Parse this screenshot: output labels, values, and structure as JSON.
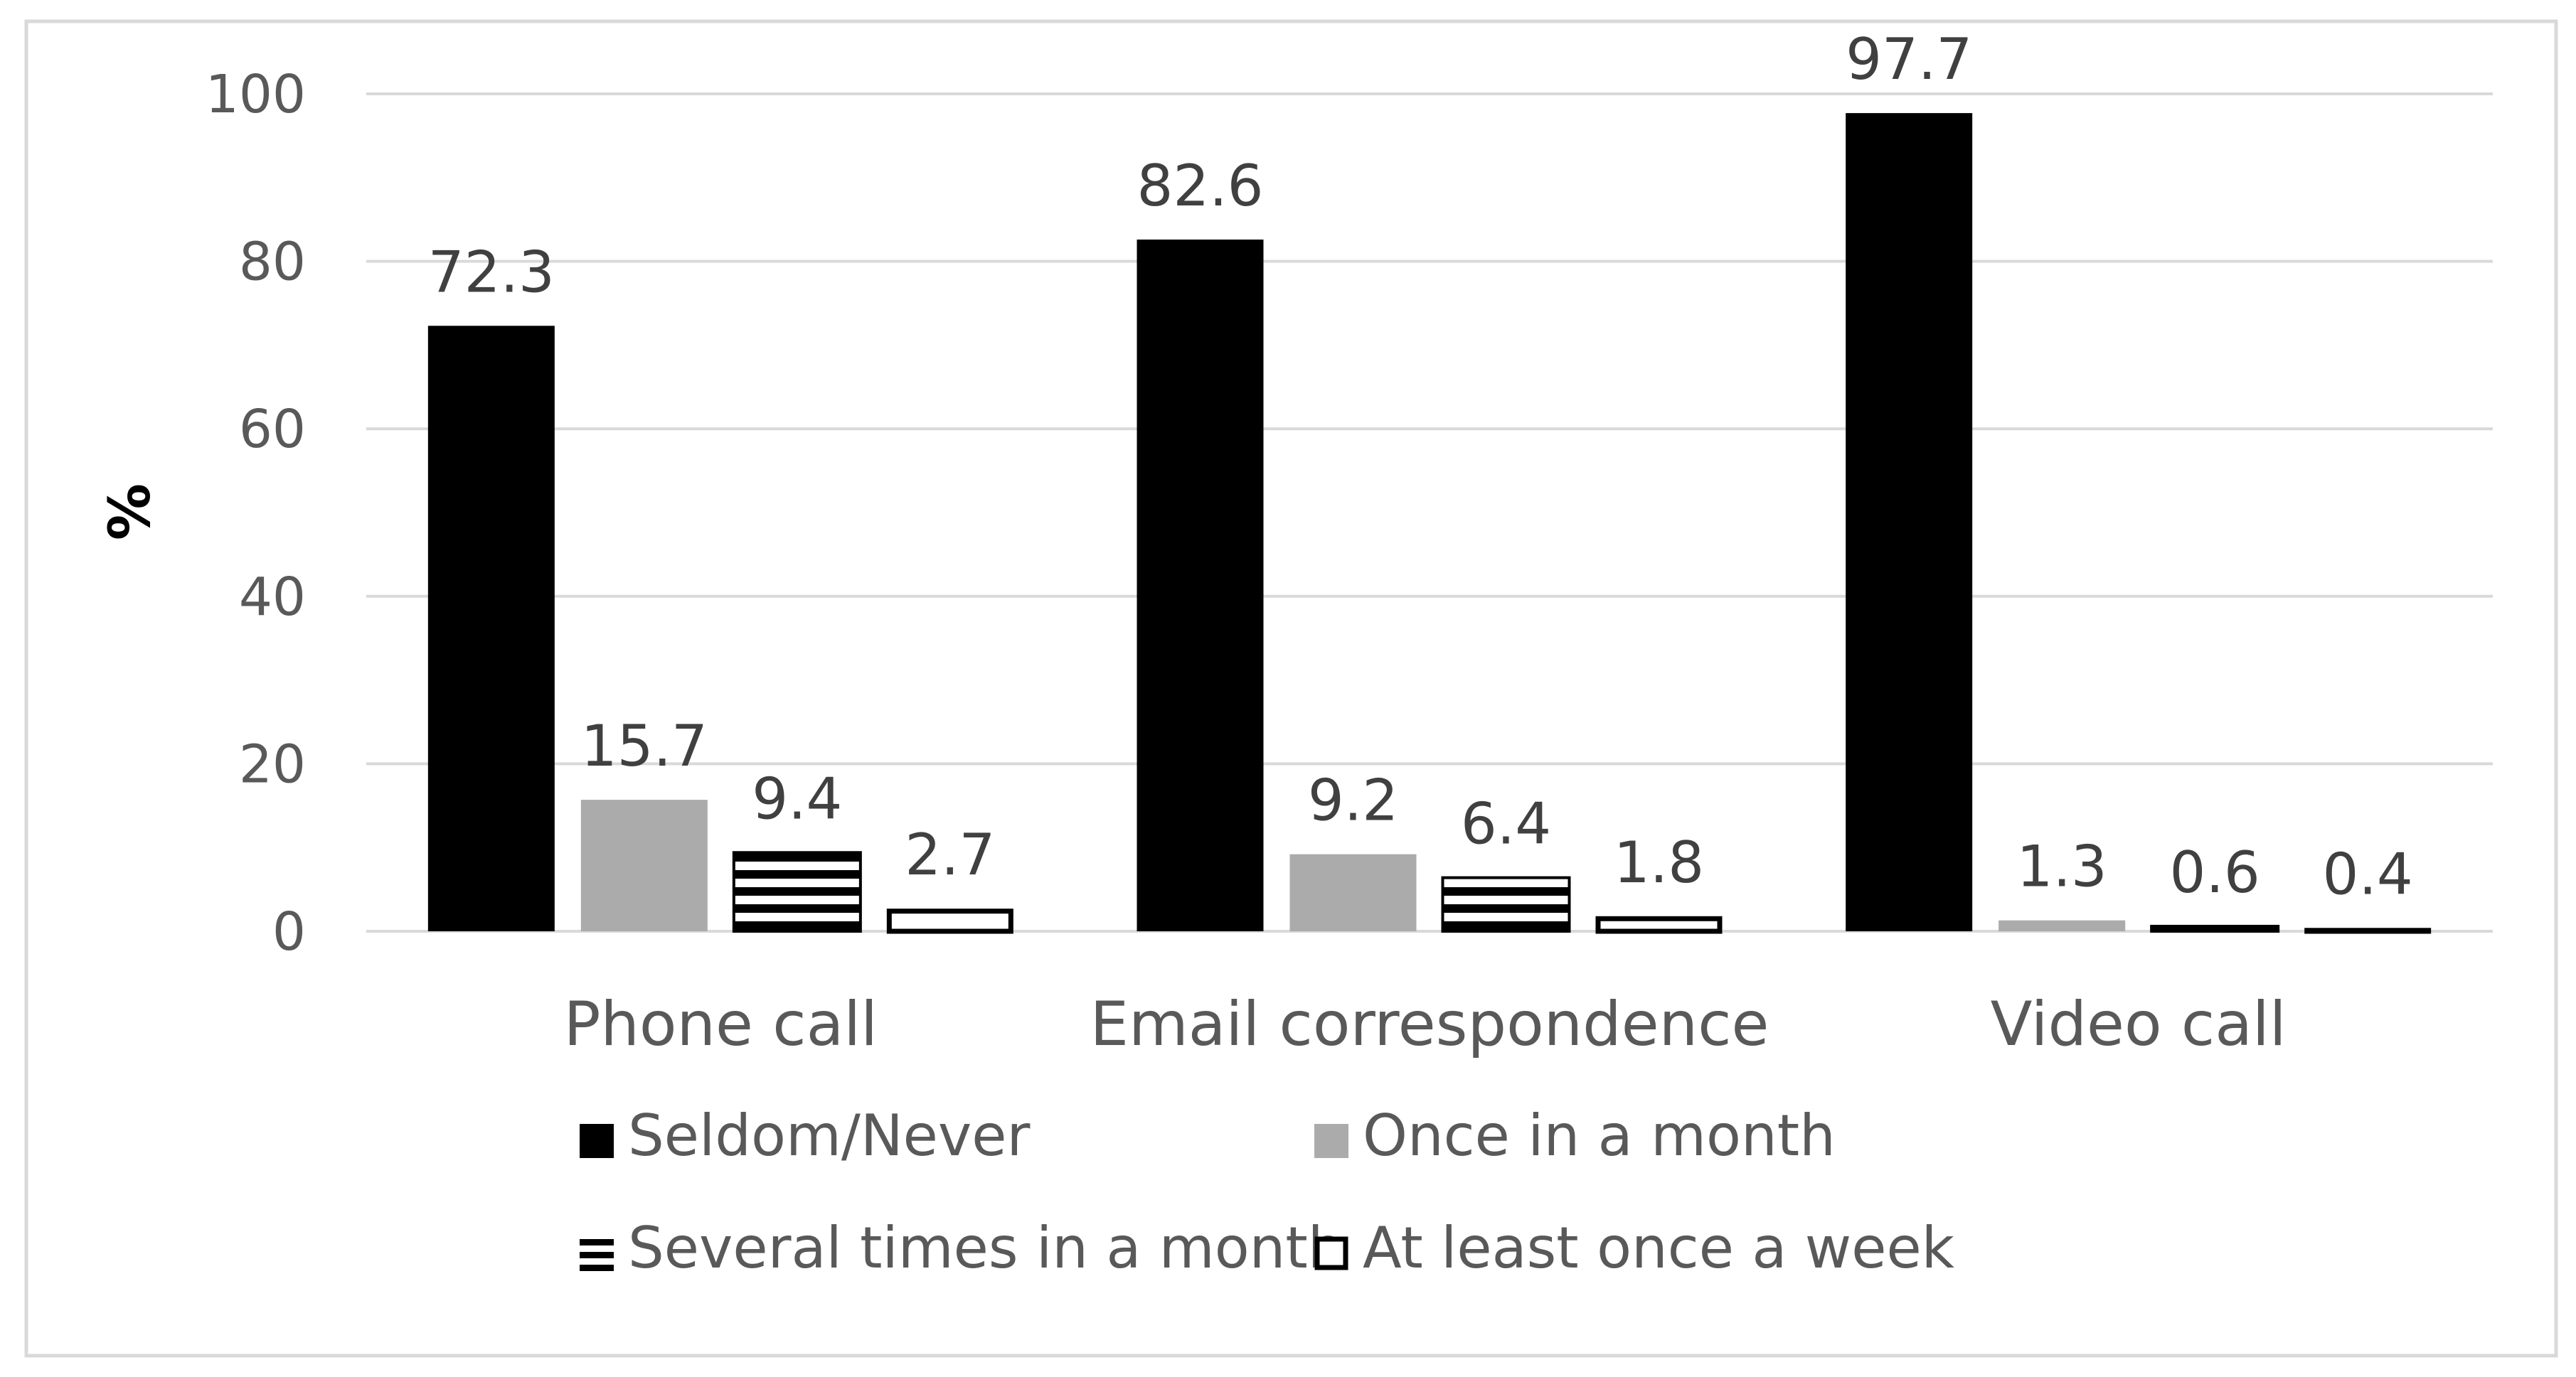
{
  "chart_data": {
    "type": "bar",
    "title": "",
    "xlabel": "",
    "ylabel": "%",
    "ylim": [
      0,
      100
    ],
    "yticks": [
      0,
      20,
      40,
      60,
      80,
      100
    ],
    "grid": true,
    "legend_position": "bottom",
    "categories": [
      "Phone call",
      "Email correspondence",
      "Video call"
    ],
    "series": [
      {
        "name": "Seldom/Never",
        "values": [
          72.3,
          82.6,
          97.7
        ],
        "labels": [
          "72.3",
          "82.6",
          "97.7"
        ],
        "fill": "#000000",
        "pattern": "solid"
      },
      {
        "name": "Once in a month",
        "values": [
          15.7,
          9.2,
          1.3
        ],
        "labels": [
          "15.7",
          "9.2",
          "1.3"
        ],
        "fill": "#ababab",
        "pattern": "solid"
      },
      {
        "name": "Several times in a month",
        "values": [
          9.4,
          6.4,
          0.6
        ],
        "labels": [
          "9.4",
          "6.4",
          "0.6"
        ],
        "fill": "#000000",
        "pattern": "horizontal-stripes"
      },
      {
        "name": "At least once a week",
        "values": [
          2.7,
          1.8,
          0.4
        ],
        "labels": [
          "2.7",
          "1.8",
          "0.4"
        ],
        "fill": "#ffffff",
        "pattern": "outline"
      }
    ]
  },
  "colors": {
    "gridline": "#d9d9d9",
    "axis_line": "#d9d9d9",
    "frame_border": "#d9d9d9",
    "text": "#595959"
  }
}
